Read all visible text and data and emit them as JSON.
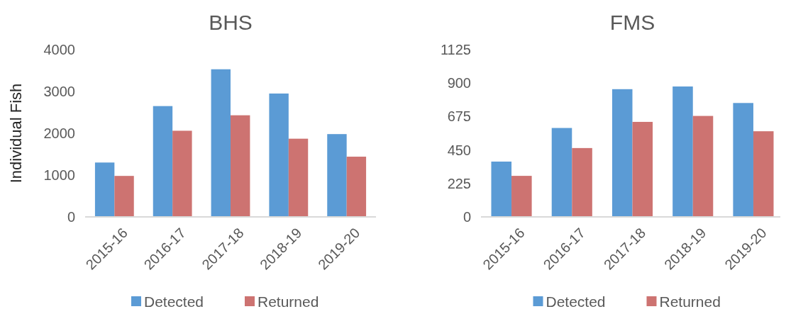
{
  "chart_data": [
    {
      "type": "bar",
      "title": "BHS",
      "ylabel": "Individual Fish",
      "categories": [
        "2015-16",
        "2016-17",
        "2017-18",
        "2018-19",
        "2019-20"
      ],
      "series": [
        {
          "name": "Detected",
          "color": "#5b9bd5",
          "values": [
            1300,
            2650,
            3530,
            2950,
            1980
          ]
        },
        {
          "name": "Returned",
          "color": "#cd7371",
          "values": [
            980,
            2060,
            2430,
            1870,
            1440
          ]
        }
      ],
      "ylim": [
        0,
        4000
      ],
      "yticks": [
        0,
        1000,
        2000,
        3000,
        4000
      ],
      "legend": "bottom"
    },
    {
      "type": "bar",
      "title": "FMS",
      "categories": [
        "2015-16",
        "2016-17",
        "2017-18",
        "2018-19",
        "2019-20"
      ],
      "series": [
        {
          "name": "Detected",
          "color": "#5b9bd5",
          "values": [
            372,
            598,
            859,
            877,
            766
          ]
        },
        {
          "name": "Returned",
          "color": "#cd7371",
          "values": [
            276,
            463,
            639,
            679,
            576
          ]
        }
      ],
      "ylim": [
        0,
        1125
      ],
      "yticks": [
        0,
        225,
        450,
        675,
        900,
        1125
      ],
      "legend": "bottom"
    }
  ]
}
